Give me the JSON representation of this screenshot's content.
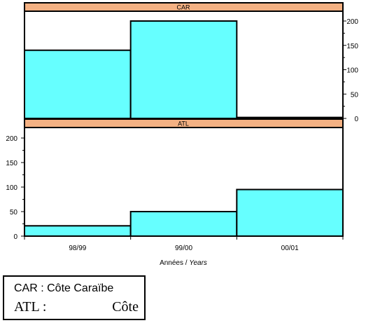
{
  "chart_data": [
    {
      "type": "bar",
      "title": "CAR",
      "categories": [
        "98/99",
        "99/00",
        "00/01"
      ],
      "values": [
        140,
        200,
        2
      ],
      "ylim": [
        0,
        200
      ],
      "yticks": [
        0,
        50,
        100,
        150,
        200
      ],
      "yaxis_side": "right",
      "bar_color": "#66ffff",
      "header_color": "#f4b183"
    },
    {
      "type": "bar",
      "title": "ATL",
      "categories": [
        "98/99",
        "99/00",
        "00/01"
      ],
      "values": [
        21,
        50,
        95
      ],
      "ylim": [
        0,
        200
      ],
      "yticks": [
        0,
        50,
        100,
        150,
        200
      ],
      "yaxis_side": "left",
      "xlabel": "Années / ",
      "xlabel_italic": "Years",
      "bar_color": "#66ffff",
      "header_color": "#f4b183"
    }
  ],
  "legend": {
    "line1": "CAR : Côte Caraïbe",
    "line2_left": "ATL :",
    "line2_right": "Côte"
  }
}
